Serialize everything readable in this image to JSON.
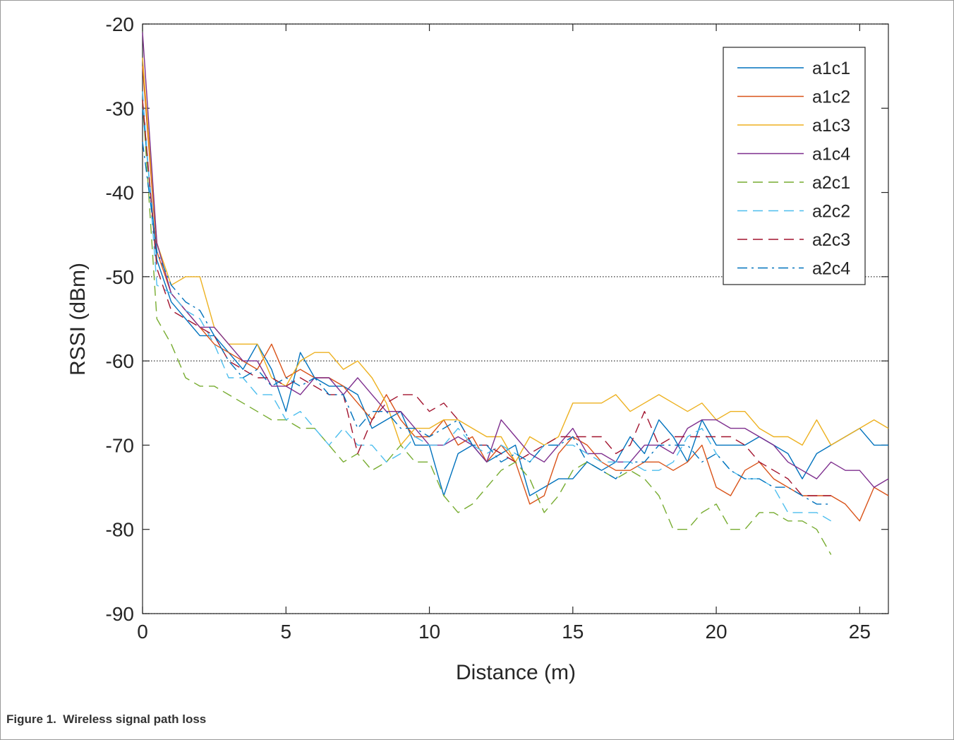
{
  "caption": "Figure 1.  Wireless signal path loss",
  "chart_data": {
    "type": "line",
    "title": "",
    "xlabel": "Distance (m)",
    "ylabel": "RSSI (dBm)",
    "xlim": [
      0,
      26
    ],
    "ylim": [
      -90,
      -20
    ],
    "xticks": [
      0,
      5,
      10,
      15,
      20,
      25
    ],
    "yticks": [
      -20,
      -30,
      -40,
      -50,
      -60,
      -70,
      -80,
      -90
    ],
    "grid": "y-dotted at -20, -50, -60, -90",
    "legend_position": "top-right",
    "x": [
      0,
      0.5,
      1,
      1.5,
      2,
      2.5,
      3,
      3.5,
      4,
      4.5,
      5,
      5.5,
      6,
      6.5,
      7,
      7.5,
      8,
      8.5,
      9,
      9.5,
      10,
      10.5,
      11,
      11.5,
      12,
      12.5,
      13,
      13.5,
      14,
      14.5,
      15,
      15.5,
      16,
      16.5,
      17,
      17.5,
      18,
      18.5,
      19,
      19.5,
      20,
      20.5,
      21,
      21.5,
      22,
      22.5,
      23,
      23.5,
      24,
      24.5,
      25,
      25.5,
      26
    ],
    "series": [
      {
        "name": "a1c1",
        "color": "#0072BD",
        "dash": "solid",
        "values": [
          -30,
          -48,
          -53,
          -55,
          -57,
          -57,
          -59,
          -61,
          -58,
          -61,
          -66,
          -59,
          -62,
          -63,
          -63,
          -64,
          -68,
          -67,
          -66,
          -70,
          -70,
          -76,
          -71,
          -70,
          -72,
          -71,
          -70,
          -76,
          -75,
          -74,
          -74,
          -72,
          -73,
          -72,
          -69,
          -71,
          -67,
          -69,
          -72,
          -67,
          -70,
          -70,
          -70,
          -69,
          -70,
          -71,
          -74,
          -71,
          -70,
          -69,
          -68,
          -70,
          -70
        ]
      },
      {
        "name": "a1c2",
        "color": "#D95319",
        "dash": "solid",
        "values": [
          -25,
          -47,
          -52,
          -54,
          -56,
          -58,
          -59,
          -60,
          -61,
          -58,
          -62,
          -61,
          -62,
          -62,
          -63,
          -65,
          -67,
          -64,
          -67,
          -69,
          -69,
          -67,
          -70,
          -69,
          -72,
          -70,
          -72,
          -77,
          -76,
          -71,
          -69,
          -70,
          -72,
          -73,
          -73,
          -72,
          -72,
          -73,
          -72,
          -70,
          -75,
          -76,
          -73,
          -72,
          -74,
          -75,
          -76,
          -76,
          -76,
          -77,
          -79,
          -75,
          -76
        ]
      },
      {
        "name": "a1c3",
        "color": "#EDB120",
        "dash": "solid",
        "values": [
          -24,
          -46,
          -51,
          -50,
          -50,
          -56,
          -58,
          -58,
          -58,
          -62,
          -63,
          -60,
          -59,
          -59,
          -61,
          -60,
          -62,
          -65,
          -70,
          -68,
          -68,
          -67,
          -67,
          -68,
          -69,
          -69,
          -72,
          -69,
          -70,
          -69,
          -65,
          -65,
          -65,
          -64,
          -66,
          -65,
          -64,
          -65,
          -66,
          -65,
          -67,
          -66,
          -66,
          -68,
          -69,
          -69,
          -70,
          -67,
          -70,
          -69,
          -68,
          -67,
          -68
        ]
      },
      {
        "name": "a1c4",
        "color": "#7E2F8E",
        "dash": "solid",
        "values": [
          -21,
          -46,
          -52,
          -54,
          -56,
          -56,
          -58,
          -60,
          -60,
          -63,
          -63,
          -64,
          -62,
          -62,
          -64,
          -62,
          -64,
          -66,
          -66,
          -68,
          -70,
          -70,
          -69,
          -70,
          -72,
          -67,
          -69,
          -71,
          -72,
          -70,
          -68,
          -71,
          -71,
          -72,
          -72,
          -70,
          -70,
          -71,
          -68,
          -67,
          -67,
          -68,
          -68,
          -69,
          -70,
          -72,
          -73,
          -74,
          -72,
          -73,
          -73,
          -75,
          -74
        ]
      },
      {
        "name": "a2c1",
        "color": "#77AC30",
        "dash": "dashed",
        "values": [
          -29,
          -55,
          -58,
          -62,
          -63,
          -63,
          -64,
          -65,
          -66,
          -67,
          -67,
          -68,
          -68,
          -70,
          -72,
          -71,
          -73,
          -72,
          -70,
          -72,
          -72,
          -76,
          -78,
          -77,
          -75,
          -73,
          -72,
          -74,
          -78,
          -76,
          -73,
          -72,
          -73,
          -74,
          -73,
          -74,
          -76,
          -80,
          -80,
          -78,
          -77,
          -80,
          -80,
          -78,
          -78,
          -79,
          -79,
          -80,
          -83,
          null,
          null,
          null,
          null
        ]
      },
      {
        "name": "a2c2",
        "color": "#4DBEEE",
        "dash": "dashed",
        "values": [
          -28,
          -51,
          -52,
          -54,
          -55,
          -58,
          -62,
          -62,
          -64,
          -64,
          -67,
          -66,
          -68,
          -70,
          -68,
          -70,
          -70,
          -72,
          -71,
          -69,
          -70,
          -70,
          -68,
          -70,
          -71,
          -70,
          -71,
          -72,
          -70,
          -70,
          -70,
          -71,
          -72,
          -72,
          -72,
          -73,
          -73,
          -72,
          -69,
          -68,
          -71,
          -73,
          -74,
          -74,
          -75,
          -78,
          -78,
          -78,
          -79,
          null,
          null,
          null,
          null
        ]
      },
      {
        "name": "a2c3",
        "color": "#A2142F",
        "dash": "dashed",
        "values": [
          -29,
          -49,
          -54,
          -55,
          -56,
          -57,
          -60,
          -61,
          -62,
          -62,
          -63,
          -62,
          -63,
          -64,
          -64,
          -71,
          -67,
          -65,
          -64,
          -64,
          -66,
          -65,
          -67,
          -70,
          -70,
          -71,
          -72,
          -71,
          -70,
          -69,
          -69,
          -69,
          -69,
          -71,
          -70,
          -66,
          -70,
          -69,
          -69,
          -69,
          -69,
          -69,
          -70,
          -72,
          -73,
          -74,
          -76,
          -76,
          -76,
          null,
          null,
          null,
          null
        ]
      },
      {
        "name": "a2c4",
        "color": "#0072BD",
        "dash": "dashdot",
        "values": [
          -34,
          -47,
          -51,
          -53,
          -54,
          -57,
          -60,
          -62,
          -61,
          -63,
          -62,
          -63,
          -62,
          -64,
          -64,
          -68,
          -66,
          -66,
          -68,
          -68,
          -69,
          -68,
          -67,
          -70,
          -70,
          -72,
          -71,
          -72,
          -70,
          -70,
          -69,
          -72,
          -73,
          -74,
          -72,
          -72,
          -70,
          -70,
          -70,
          -72,
          -71,
          -73,
          -74,
          -74,
          -75,
          -75,
          -76,
          -77,
          -77,
          null,
          null,
          null,
          null
        ]
      }
    ]
  }
}
